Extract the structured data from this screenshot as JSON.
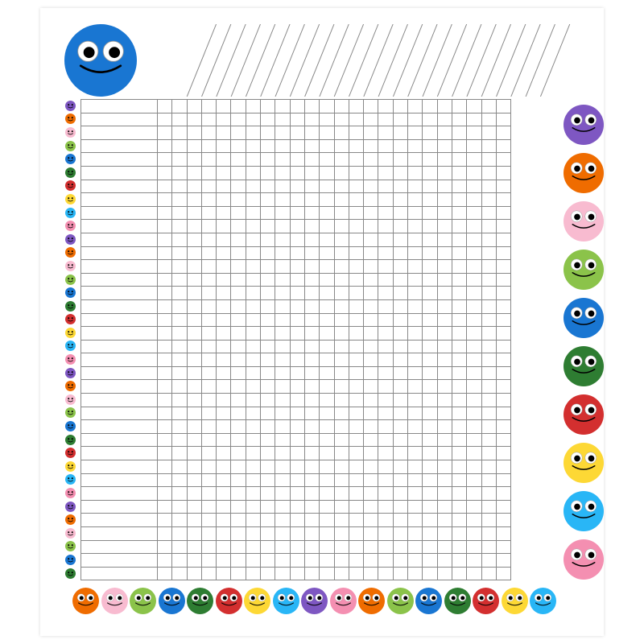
{
  "type": "incentive-chart",
  "background_color": "#ffffff",
  "grid": {
    "rows": 36,
    "name_col_width": 95,
    "data_cols": 24,
    "data_col_width": 18.3,
    "row_height": 16.6,
    "border_color": "#888888"
  },
  "header_lines": {
    "count": 24,
    "angle_deg": 68,
    "color": "#888888"
  },
  "big_smiley": {
    "diameter": 90,
    "color": "#1976d2",
    "googly": true
  },
  "left_dots": {
    "diameter": 13,
    "colors_cycle": [
      "#7e57c2",
      "#ef6c00",
      "#f8bbd0",
      "#8bc34a",
      "#1976d2",
      "#2e7d32",
      "#d32f2f",
      "#fdd835",
      "#29b6f6",
      "#f48fb1"
    ],
    "count": 36
  },
  "right_faces": {
    "diameter": 50,
    "gap": 10,
    "colors": [
      "#7e57c2",
      "#ef6c00",
      "#f8bbd0",
      "#8bc34a",
      "#1976d2",
      "#2e7d32",
      "#d32f2f",
      "#fdd835",
      "#29b6f6",
      "#f48fb1"
    ]
  },
  "bottom_faces": {
    "diameter": 33,
    "colors": [
      "#ef6c00",
      "#f8bbd0",
      "#8bc34a",
      "#1976d2",
      "#2e7d32",
      "#d32f2f",
      "#fdd835",
      "#29b6f6",
      "#7e57c2",
      "#f48fb1",
      "#ef6c00",
      "#8bc34a",
      "#1976d2",
      "#2e7d32",
      "#d32f2f",
      "#fdd835",
      "#29b6f6"
    ]
  },
  "face_style": {
    "eye_white": "#ffffff",
    "eye_pupil": "#000000",
    "smile_stroke": "#000000"
  }
}
